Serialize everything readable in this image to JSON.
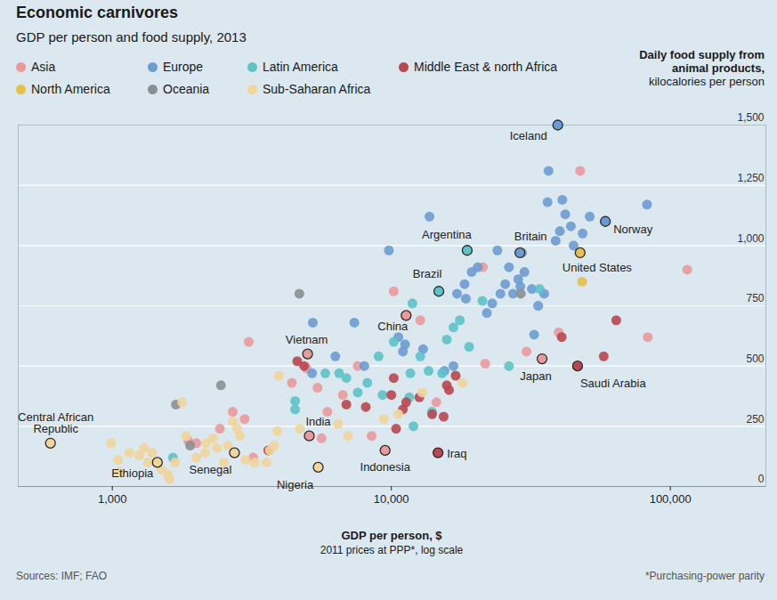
{
  "chart_data": {
    "type": "scatter",
    "title": "Economic carnivores",
    "subtitle": "GDP per person and food supply, 2013",
    "xlabel": "GDP per person, $",
    "xlabel_note": "2011 prices at PPP*, log scale",
    "ylabel": "Daily food supply from animal products,",
    "ylabel_unit": "kilocalories per person",
    "source": "Sources: IMF; FAO",
    "footnote": "*Purchasing-power parity",
    "log": "x",
    "grid": true,
    "legend": "top",
    "marker": "circle",
    "xlim": [
      460,
      220000
    ],
    "xticks": [
      {
        "value": 1000,
        "label": "1,000"
      },
      {
        "value": 10000,
        "label": "10,000"
      },
      {
        "value": 100000,
        "label": "100,000"
      }
    ],
    "ylim": [
      0,
      1500
    ],
    "yticks": [
      0,
      250,
      500,
      750,
      {
        "value": 1000,
        "label": "1,000"
      },
      {
        "value": 1250,
        "label": "1,250"
      },
      {
        "value": 1500,
        "label": "1,500"
      }
    ],
    "series": [
      {
        "name": "Asia",
        "color": "#e99a9c",
        "values": [
          [
            1870,
            190
          ],
          [
            2000,
            180
          ],
          [
            2430,
            240
          ],
          [
            2980,
            280
          ],
          [
            3200,
            120
          ],
          [
            3080,
            600
          ],
          [
            4970,
            490
          ],
          [
            5440,
            410
          ],
          [
            5620,
            200
          ],
          [
            5900,
            310
          ],
          [
            7580,
            500
          ],
          [
            10200,
            810
          ],
          [
            12700,
            690
          ],
          [
            21300,
            910
          ],
          [
            21700,
            510
          ],
          [
            30500,
            560
          ],
          [
            39800,
            640
          ],
          [
            47500,
            1310
          ],
          [
            83000,
            620
          ],
          [
            115000,
            900
          ],
          [
            4400,
            430
          ],
          [
            6700,
            380
          ],
          [
            8500,
            210
          ],
          [
            14500,
            350
          ],
          [
            2700,
            310
          ]
        ]
      },
      {
        "name": "Europe",
        "color": "#6b9bd1",
        "values": [
          [
            5200,
            470
          ],
          [
            5230,
            680
          ],
          [
            7370,
            680
          ],
          [
            9800,
            980
          ],
          [
            13700,
            1120
          ],
          [
            15500,
            480
          ],
          [
            17200,
            800
          ],
          [
            18300,
            840
          ],
          [
            19400,
            890
          ],
          [
            20400,
            910
          ],
          [
            22000,
            720
          ],
          [
            24000,
            980
          ],
          [
            24600,
            800
          ],
          [
            25600,
            840
          ],
          [
            26400,
            910
          ],
          [
            27300,
            800
          ],
          [
            28500,
            860
          ],
          [
            30000,
            890
          ],
          [
            31900,
            820
          ],
          [
            33600,
            750
          ],
          [
            35300,
            800
          ],
          [
            36300,
            1180
          ],
          [
            38800,
            1020
          ],
          [
            40200,
            1060
          ],
          [
            41000,
            1190
          ],
          [
            42000,
            1130
          ],
          [
            51400,
            1120
          ],
          [
            36600,
            1310
          ],
          [
            82500,
            1170
          ],
          [
            32500,
            630
          ],
          [
            8000,
            500
          ],
          [
            10600,
            620
          ],
          [
            11200,
            590
          ],
          [
            13000,
            570
          ],
          [
            18500,
            780
          ],
          [
            23000,
            760
          ],
          [
            45000,
            1000
          ],
          [
            44000,
            1080
          ],
          [
            48500,
            1050
          ],
          [
            29000,
            830
          ],
          [
            11000,
            560
          ],
          [
            6300,
            540
          ],
          [
            16700,
            500
          ]
        ]
      },
      {
        "name": "Latin America",
        "color": "#5cc3c8",
        "values": [
          [
            4520,
            320
          ],
          [
            4520,
            355
          ],
          [
            6500,
            470
          ],
          [
            7580,
            390
          ],
          [
            10200,
            600
          ],
          [
            11900,
            760
          ],
          [
            11700,
            470
          ],
          [
            12700,
            540
          ],
          [
            15200,
            470
          ],
          [
            15800,
            610
          ],
          [
            16700,
            660
          ],
          [
            21200,
            770
          ],
          [
            26400,
            500
          ],
          [
            11600,
            370
          ],
          [
            8200,
            430
          ],
          [
            6900,
            450
          ],
          [
            9000,
            540
          ],
          [
            13600,
            480
          ],
          [
            17600,
            690
          ],
          [
            19000,
            580
          ],
          [
            34000,
            820
          ],
          [
            1650,
            120
          ],
          [
            14000,
            310
          ],
          [
            5800,
            470
          ],
          [
            9300,
            380
          ],
          [
            12000,
            250
          ]
        ]
      },
      {
        "name": "Middle East & north Africa",
        "color": "#b9474f",
        "values": [
          [
            3620,
            150
          ],
          [
            4870,
            500
          ],
          [
            6900,
            340
          ],
          [
            8100,
            330
          ],
          [
            10200,
            450
          ],
          [
            11300,
            350
          ],
          [
            12600,
            370
          ],
          [
            15400,
            290
          ],
          [
            16100,
            400
          ],
          [
            64000,
            690
          ],
          [
            40800,
            620
          ],
          [
            57700,
            540
          ],
          [
            10400,
            240
          ],
          [
            4600,
            520
          ],
          [
            10000,
            380
          ],
          [
            11000,
            320
          ],
          [
            15800,
            420
          ],
          [
            17000,
            460
          ],
          [
            14000,
            300
          ]
        ]
      },
      {
        "name": "North America",
        "color": "#e5c04d",
        "values": [
          [
            48300,
            850
          ]
        ]
      },
      {
        "name": "Oceania",
        "color": "#8b8f94",
        "values": [
          [
            4680,
            800
          ],
          [
            2450,
            420
          ],
          [
            1690,
            340
          ],
          [
            1900,
            170
          ],
          [
            29400,
            970
          ],
          [
            29100,
            800
          ]
        ]
      },
      {
        "name": "Sub-Saharan Africa",
        "color": "#f1d59b",
        "values": [
          [
            990,
            180
          ],
          [
            1050,
            110
          ],
          [
            1060,
            60
          ],
          [
            1250,
            130
          ],
          [
            1340,
            100
          ],
          [
            1390,
            140
          ],
          [
            1580,
            50
          ],
          [
            1600,
            30
          ],
          [
            1680,
            100
          ],
          [
            1780,
            350
          ],
          [
            1840,
            210
          ],
          [
            2150,
            140
          ],
          [
            2170,
            180
          ],
          [
            2370,
            160
          ],
          [
            2510,
            100
          ],
          [
            2600,
            170
          ],
          [
            2800,
            240
          ],
          [
            2870,
            210
          ],
          [
            3000,
            110
          ],
          [
            3240,
            100
          ],
          [
            3570,
            100
          ],
          [
            3670,
            150
          ],
          [
            3800,
            170
          ],
          [
            3900,
            230
          ],
          [
            3950,
            460
          ],
          [
            6440,
            260
          ],
          [
            9400,
            280
          ],
          [
            10600,
            300
          ],
          [
            12900,
            390
          ],
          [
            1500,
            70
          ],
          [
            1150,
            140
          ],
          [
            2000,
            120
          ],
          [
            2300,
            200
          ],
          [
            1300,
            160
          ],
          [
            2700,
            270
          ],
          [
            4700,
            240
          ],
          [
            7000,
            210
          ],
          [
            18000,
            430
          ]
        ]
      }
    ],
    "highlighted": [
      {
        "name": "Central African Republic",
        "region": "Sub-Saharan Africa",
        "x": 600,
        "y": 180
      },
      {
        "name": "Ethiopia",
        "region": "Sub-Saharan Africa",
        "x": 1450,
        "y": 100
      },
      {
        "name": "Senegal",
        "region": "Sub-Saharan Africa",
        "x": 2740,
        "y": 140
      },
      {
        "name": "Nigeria",
        "region": "Sub-Saharan Africa",
        "x": 5470,
        "y": 80
      },
      {
        "name": "India",
        "region": "Asia",
        "x": 5080,
        "y": 210
      },
      {
        "name": "Indonesia",
        "region": "Asia",
        "x": 9500,
        "y": 150
      },
      {
        "name": "Iraq",
        "region": "Middle East & north Africa",
        "x": 14700,
        "y": 140
      },
      {
        "name": "Vietnam",
        "region": "Asia",
        "x": 5010,
        "y": 550
      },
      {
        "name": "China",
        "region": "Asia",
        "x": 11300,
        "y": 710
      },
      {
        "name": "Brazil",
        "region": "Latin America",
        "x": 14800,
        "y": 810
      },
      {
        "name": "Argentina",
        "region": "Latin America",
        "x": 18700,
        "y": 980
      },
      {
        "name": "Britain",
        "region": "Europe",
        "x": 28900,
        "y": 970
      },
      {
        "name": "Iceland",
        "region": "Europe",
        "x": 39500,
        "y": 1500
      },
      {
        "name": "Norway",
        "region": "Europe",
        "x": 58500,
        "y": 1100
      },
      {
        "name": "United States",
        "region": "North America",
        "x": 47500,
        "y": 970
      },
      {
        "name": "Japan",
        "region": "Asia",
        "x": 34700,
        "y": 530
      },
      {
        "name": "Saudi Arabia",
        "region": "Middle East & north Africa",
        "x": 46500,
        "y": 500
      }
    ]
  }
}
